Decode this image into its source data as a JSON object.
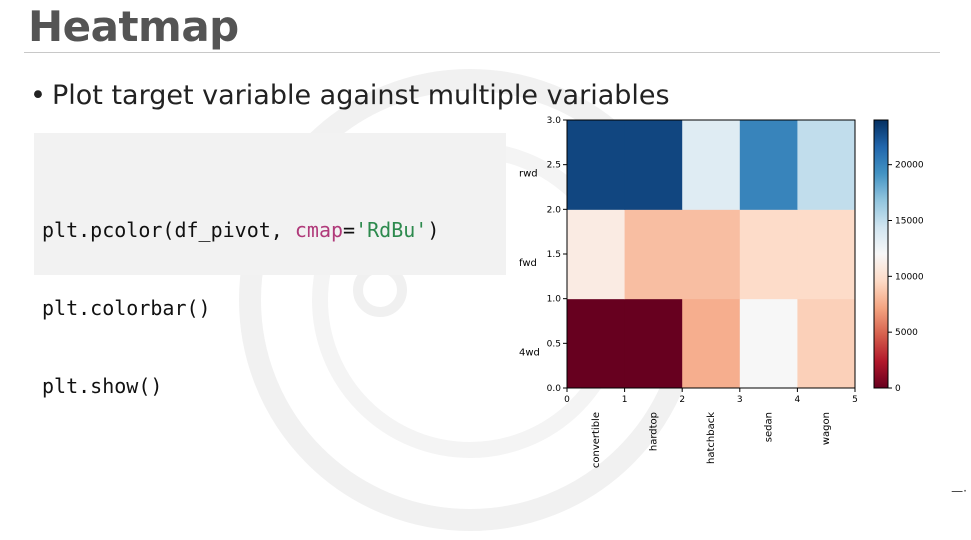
{
  "slide": {
    "title": "Heatmap",
    "bullet": "Plot target variable against multiple variables",
    "bullet_symbol": "•"
  },
  "code": {
    "line1": {
      "pre": "plt.pcolor(df_pivot, ",
      "kw": "cmap",
      "eq": "=",
      "str": "'RdBu'",
      "post": ")"
    },
    "line2": "plt.colorbar()",
    "line3": "plt.show()"
  },
  "chart_data": {
    "type": "heatmap",
    "colormap": "RdBu",
    "x_categories": [
      "convertible",
      "hardtop",
      "hatchback",
      "sedan",
      "wagon"
    ],
    "y_categories": [
      "4wd",
      "fwd",
      "rwd"
    ],
    "x_ticks": [
      "0",
      "1",
      "2",
      "3",
      "4",
      "5"
    ],
    "y_ticks": [
      "0.0",
      "0.5",
      "1.0",
      "1.5",
      "2.0",
      "2.5",
      "3.0"
    ],
    "xlim": [
      0,
      5
    ],
    "ylim": [
      0,
      3
    ],
    "values": [
      [
        0,
        0,
        7600,
        12000,
        9100
      ],
      [
        11000,
        8300,
        8300,
        9700,
        9700
      ],
      [
        23000,
        23000,
        13500,
        20000,
        15000
      ]
    ],
    "colorbar": {
      "min": 0,
      "max": 24000,
      "ticks": [
        0,
        5000,
        10000,
        15000,
        20000
      ]
    }
  }
}
